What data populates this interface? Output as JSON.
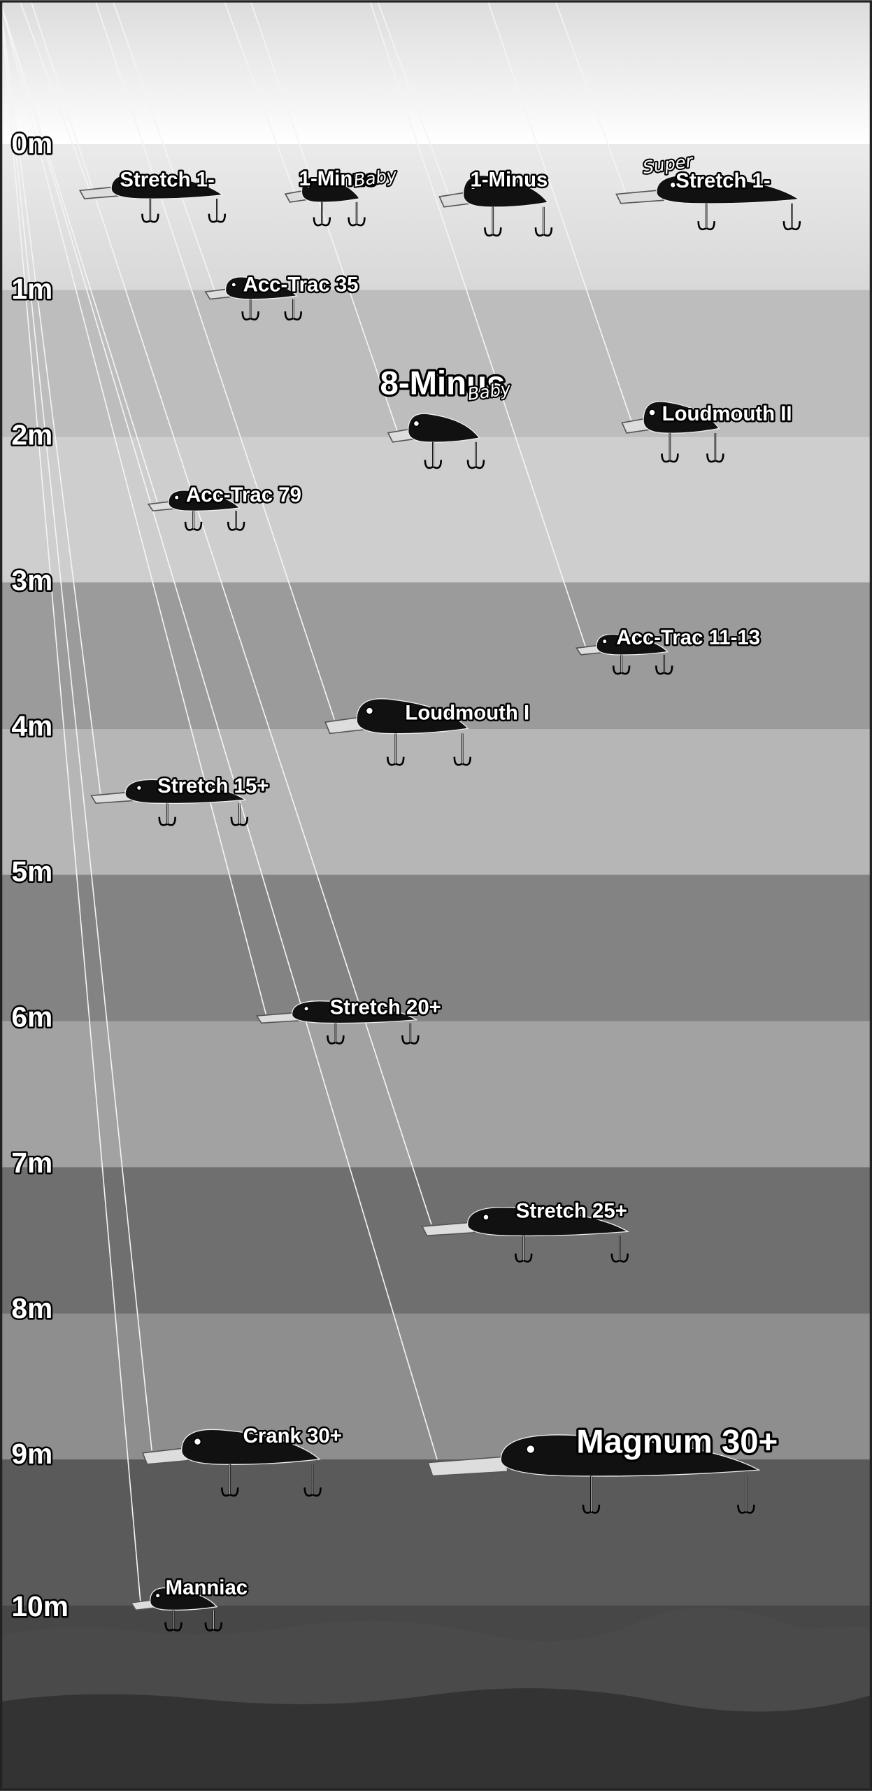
{
  "depth_labels": [
    "0m",
    "1m",
    "2m",
    "3m",
    "4m",
    "5m",
    "6m",
    "7m",
    "8m",
    "9m",
    "10m"
  ],
  "lures": [
    {
      "name": "Stretch 1-"
    },
    {
      "name": "1-Minus",
      "tag": "Baby"
    },
    {
      "name": "1-Minus"
    },
    {
      "name": "Stretch 1-",
      "tag": "Super"
    },
    {
      "name": "Acc-Trac 35"
    },
    {
      "name": "8-Minus",
      "tag": "Baby"
    },
    {
      "name": "Loudmouth II"
    },
    {
      "name": "Acc-Trac 79"
    },
    {
      "name": "Acc-Trac 11-13"
    },
    {
      "name": "Loudmouth I"
    },
    {
      "name": "Stretch 15+"
    },
    {
      "name": "Stretch 20+"
    },
    {
      "name": "Stretch 25+"
    },
    {
      "name": "Crank 30+"
    },
    {
      "name": "Magnum 30+"
    },
    {
      "name": "Manniac"
    }
  ]
}
